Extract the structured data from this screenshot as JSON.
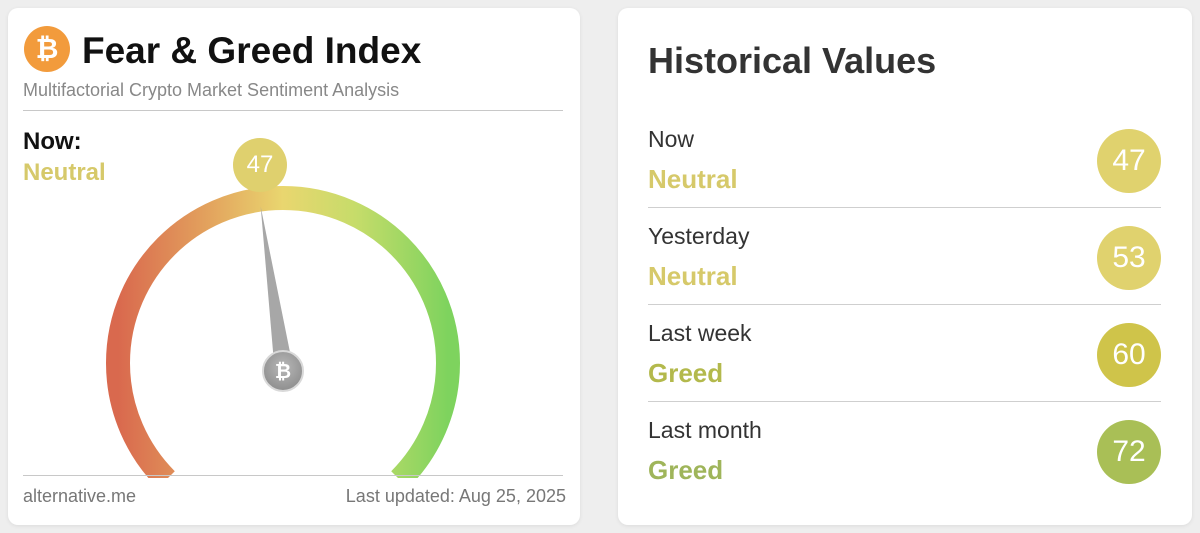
{
  "left_card": {
    "logo_glyph": "₿",
    "title": "Fear & Greed Index",
    "subtitle": "Multifactorial Crypto Market Sentiment Analysis",
    "now_label": "Now:",
    "now_classification": "Neutral",
    "now_value": "47",
    "gauge": {
      "value": 47,
      "min": 0,
      "max": 100,
      "hub_glyph": "₿",
      "colors": {
        "fear": "#d9694e",
        "mid_low": "#e3a45e",
        "neutral": "#e9d66f",
        "mid_high": "#c6dc6a",
        "greed": "#7ed35e"
      }
    },
    "footer_source": "alternative.me",
    "footer_updated": "Last updated: Aug 25, 2025"
  },
  "right_card": {
    "title": "Historical Values",
    "rows": [
      {
        "label": "Now",
        "classification": "Neutral",
        "value": "47",
        "color": "#e0d26e",
        "text_color": "#d6c96a"
      },
      {
        "label": "Yesterday",
        "classification": "Neutral",
        "value": "53",
        "color": "#e0d26e",
        "text_color": "#d6c96a"
      },
      {
        "label": "Last week",
        "classification": "Greed",
        "value": "60",
        "color": "#cfc44a",
        "text_color": "#b3b94c"
      },
      {
        "label": "Last month",
        "classification": "Greed",
        "value": "72",
        "color": "#a9bf56",
        "text_color": "#9fb55a"
      }
    ]
  }
}
